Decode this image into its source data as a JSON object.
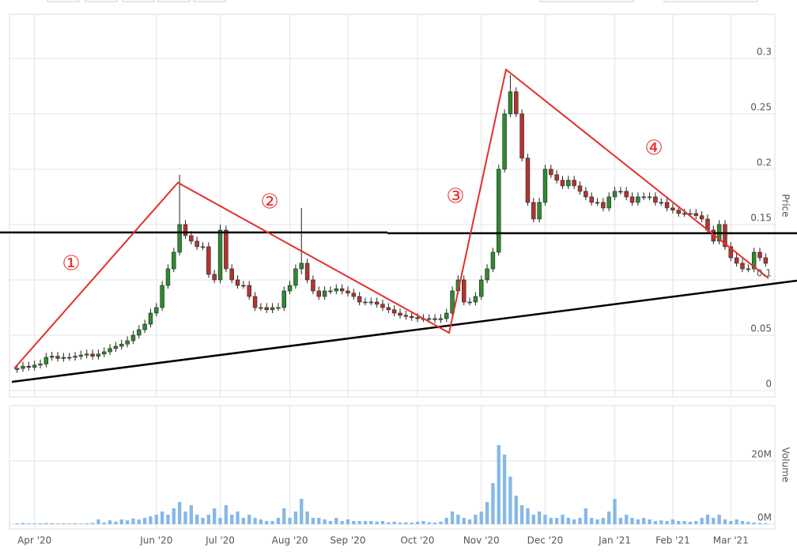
{
  "chart_data": {
    "type": "candlestick",
    "categories": [
      null,
      null,
      null,
      "Apr '20",
      null,
      null,
      null,
      null,
      null,
      null,
      null,
      null,
      null,
      null,
      null,
      null,
      null,
      null,
      null,
      null,
      null,
      null,
      null,
      null,
      "Jun '20",
      null,
      null,
      null,
      null,
      null,
      null,
      null,
      null,
      null,
      null,
      "Jul '20",
      null,
      null,
      null,
      null,
      null,
      null,
      null,
      null,
      null,
      null,
      null,
      "Aug '20",
      null,
      null,
      null,
      null,
      null,
      null,
      null,
      null,
      null,
      "Sep '20",
      null,
      null,
      null,
      null,
      null,
      null,
      null,
      null,
      null,
      null,
      null,
      "Oct '20",
      null,
      null,
      null,
      null,
      null,
      null,
      null,
      null,
      null,
      null,
      "Nov '20",
      null,
      null,
      null,
      null,
      null,
      null,
      null,
      null,
      null,
      null,
      "Dec '20",
      null,
      null,
      null,
      null,
      null,
      null,
      null,
      null,
      null,
      null,
      null,
      "Jan '21",
      null,
      null,
      null,
      null,
      null,
      null,
      null,
      null,
      null,
      "Feb '21",
      null,
      null,
      null,
      null,
      null,
      null,
      null,
      null,
      null,
      "Mar '21",
      null,
      null,
      null,
      null,
      null,
      null
    ],
    "ohlc": [
      [
        0.019,
        0.023,
        0.016,
        0.02
      ],
      [
        0.02,
        0.026,
        0.017,
        0.022
      ],
      [
        0.022,
        0.026,
        0.018,
        0.021
      ],
      [
        0.021,
        0.027,
        0.018,
        0.023
      ],
      [
        0.023,
        0.028,
        0.02,
        0.024
      ],
      [
        0.024,
        0.034,
        0.021,
        0.03
      ],
      [
        0.03,
        0.035,
        0.027,
        0.031
      ],
      [
        0.031,
        0.035,
        0.026,
        0.029
      ],
      [
        0.029,
        0.034,
        0.026,
        0.03
      ],
      [
        0.03,
        0.034,
        0.027,
        0.03
      ],
      [
        0.03,
        0.035,
        0.027,
        0.031
      ],
      [
        0.031,
        0.036,
        0.028,
        0.032
      ],
      [
        0.032,
        0.037,
        0.029,
        0.033
      ],
      [
        0.033,
        0.037,
        0.028,
        0.031
      ],
      [
        0.031,
        0.037,
        0.028,
        0.033
      ],
      [
        0.033,
        0.039,
        0.03,
        0.035
      ],
      [
        0.035,
        0.042,
        0.032,
        0.038
      ],
      [
        0.038,
        0.044,
        0.035,
        0.04
      ],
      [
        0.04,
        0.046,
        0.037,
        0.042
      ],
      [
        0.042,
        0.049,
        0.039,
        0.045
      ],
      [
        0.045,
        0.054,
        0.042,
        0.05
      ],
      [
        0.05,
        0.059,
        0.047,
        0.055
      ],
      [
        0.055,
        0.064,
        0.052,
        0.06
      ],
      [
        0.06,
        0.074,
        0.057,
        0.07
      ],
      [
        0.07,
        0.079,
        0.067,
        0.075
      ],
      [
        0.075,
        0.099,
        0.072,
        0.095
      ],
      [
        0.095,
        0.114,
        0.092,
        0.11
      ],
      [
        0.11,
        0.129,
        0.107,
        0.125
      ],
      [
        0.125,
        0.195,
        0.122,
        0.15
      ],
      [
        0.15,
        0.154,
        0.137,
        0.14
      ],
      [
        0.14,
        0.144,
        0.132,
        0.135
      ],
      [
        0.135,
        0.139,
        0.127,
        0.13
      ],
      [
        0.13,
        0.134,
        0.127,
        0.13
      ],
      [
        0.13,
        0.134,
        0.102,
        0.105
      ],
      [
        0.105,
        0.109,
        0.097,
        0.1
      ],
      [
        0.1,
        0.15,
        0.097,
        0.145
      ],
      [
        0.145,
        0.149,
        0.107,
        0.11
      ],
      [
        0.11,
        0.114,
        0.097,
        0.1
      ],
      [
        0.1,
        0.104,
        0.092,
        0.095
      ],
      [
        0.095,
        0.099,
        0.092,
        0.095
      ],
      [
        0.095,
        0.099,
        0.082,
        0.085
      ],
      [
        0.085,
        0.089,
        0.072,
        0.075
      ],
      [
        0.075,
        0.079,
        0.072,
        0.075
      ],
      [
        0.075,
        0.079,
        0.07,
        0.073
      ],
      [
        0.073,
        0.079,
        0.07,
        0.075
      ],
      [
        0.075,
        0.079,
        0.072,
        0.075
      ],
      [
        0.075,
        0.094,
        0.072,
        0.09
      ],
      [
        0.09,
        0.099,
        0.087,
        0.095
      ],
      [
        0.095,
        0.114,
        0.092,
        0.11
      ],
      [
        0.11,
        0.165,
        0.105,
        0.115
      ],
      [
        0.115,
        0.119,
        0.097,
        0.1
      ],
      [
        0.1,
        0.104,
        0.087,
        0.09
      ],
      [
        0.09,
        0.094,
        0.082,
        0.085
      ],
      [
        0.085,
        0.094,
        0.082,
        0.09
      ],
      [
        0.09,
        0.094,
        0.087,
        0.09
      ],
      [
        0.09,
        0.096,
        0.087,
        0.092
      ],
      [
        0.092,
        0.096,
        0.087,
        0.09
      ],
      [
        0.09,
        0.094,
        0.085,
        0.088
      ],
      [
        0.088,
        0.092,
        0.082,
        0.085
      ],
      [
        0.085,
        0.089,
        0.077,
        0.08
      ],
      [
        0.08,
        0.084,
        0.077,
        0.08
      ],
      [
        0.08,
        0.084,
        0.077,
        0.08
      ],
      [
        0.08,
        0.084,
        0.075,
        0.078
      ],
      [
        0.078,
        0.082,
        0.072,
        0.075
      ],
      [
        0.075,
        0.079,
        0.07,
        0.073
      ],
      [
        0.073,
        0.077,
        0.067,
        0.07
      ],
      [
        0.07,
        0.074,
        0.065,
        0.068
      ],
      [
        0.068,
        0.072,
        0.064,
        0.067
      ],
      [
        0.067,
        0.071,
        0.063,
        0.066
      ],
      [
        0.066,
        0.07,
        0.062,
        0.065
      ],
      [
        0.065,
        0.069,
        0.062,
        0.065
      ],
      [
        0.065,
        0.069,
        0.062,
        0.065
      ],
      [
        0.065,
        0.069,
        0.061,
        0.064
      ],
      [
        0.064,
        0.069,
        0.061,
        0.065
      ],
      [
        0.065,
        0.074,
        0.062,
        0.07
      ],
      [
        0.07,
        0.094,
        0.067,
        0.09
      ],
      [
        0.09,
        0.104,
        0.087,
        0.1
      ],
      [
        0.1,
        0.104,
        0.077,
        0.08
      ],
      [
        0.08,
        0.084,
        0.077,
        0.08
      ],
      [
        0.08,
        0.089,
        0.077,
        0.085
      ],
      [
        0.085,
        0.104,
        0.082,
        0.1
      ],
      [
        0.1,
        0.114,
        0.097,
        0.11
      ],
      [
        0.11,
        0.129,
        0.107,
        0.125
      ],
      [
        0.125,
        0.204,
        0.122,
        0.2
      ],
      [
        0.2,
        0.254,
        0.197,
        0.25
      ],
      [
        0.25,
        0.285,
        0.247,
        0.27
      ],
      [
        0.27,
        0.274,
        0.247,
        0.25
      ],
      [
        0.25,
        0.254,
        0.207,
        0.21
      ],
      [
        0.21,
        0.214,
        0.167,
        0.17
      ],
      [
        0.17,
        0.174,
        0.152,
        0.155
      ],
      [
        0.155,
        0.174,
        0.152,
        0.17
      ],
      [
        0.17,
        0.204,
        0.167,
        0.2
      ],
      [
        0.2,
        0.204,
        0.192,
        0.195
      ],
      [
        0.195,
        0.199,
        0.187,
        0.19
      ],
      [
        0.19,
        0.194,
        0.182,
        0.185
      ],
      [
        0.185,
        0.194,
        0.182,
        0.19
      ],
      [
        0.19,
        0.194,
        0.182,
        0.185
      ],
      [
        0.185,
        0.189,
        0.177,
        0.18
      ],
      [
        0.18,
        0.184,
        0.172,
        0.175
      ],
      [
        0.175,
        0.179,
        0.167,
        0.17
      ],
      [
        0.17,
        0.174,
        0.167,
        0.17
      ],
      [
        0.17,
        0.174,
        0.162,
        0.165
      ],
      [
        0.165,
        0.179,
        0.162,
        0.175
      ],
      [
        0.175,
        0.184,
        0.172,
        0.18
      ],
      [
        0.18,
        0.184,
        0.177,
        0.18
      ],
      [
        0.18,
        0.184,
        0.172,
        0.175
      ],
      [
        0.175,
        0.179,
        0.167,
        0.17
      ],
      [
        0.17,
        0.179,
        0.167,
        0.175
      ],
      [
        0.175,
        0.179,
        0.172,
        0.175
      ],
      [
        0.175,
        0.179,
        0.172,
        0.175
      ],
      [
        0.175,
        0.179,
        0.167,
        0.17
      ],
      [
        0.17,
        0.174,
        0.167,
        0.17
      ],
      [
        0.17,
        0.174,
        0.162,
        0.165
      ],
      [
        0.165,
        0.169,
        0.16,
        0.163
      ],
      [
        0.163,
        0.167,
        0.157,
        0.16
      ],
      [
        0.16,
        0.164,
        0.157,
        0.16
      ],
      [
        0.16,
        0.164,
        0.157,
        0.16
      ],
      [
        0.16,
        0.164,
        0.155,
        0.158
      ],
      [
        0.158,
        0.162,
        0.152,
        0.155
      ],
      [
        0.155,
        0.159,
        0.142,
        0.145
      ],
      [
        0.145,
        0.149,
        0.132,
        0.135
      ],
      [
        0.135,
        0.154,
        0.132,
        0.15
      ],
      [
        0.15,
        0.154,
        0.127,
        0.13
      ],
      [
        0.13,
        0.134,
        0.117,
        0.12
      ],
      [
        0.12,
        0.124,
        0.112,
        0.115
      ],
      [
        0.115,
        0.119,
        0.107,
        0.11
      ],
      [
        0.11,
        0.114,
        0.107,
        0.11
      ],
      [
        0.11,
        0.129,
        0.107,
        0.125
      ],
      [
        0.125,
        0.129,
        0.117,
        0.12
      ],
      [
        0.12,
        0.124,
        0.112,
        0.115
      ]
    ],
    "up_color": "#2f8a2f",
    "down_color": "#b8322e",
    "ylabel": "Price",
    "ylim": [
      0,
      0.34
    ],
    "yticks": [
      0,
      0.05,
      0.1,
      0.15,
      0.2,
      0.25,
      0.3
    ],
    "grid": true,
    "volume": {
      "type": "bar",
      "ylabel": "Volume",
      "color": "#86b8e8",
      "ylim": [
        0,
        37
      ],
      "yticks": [
        {
          "value": 0,
          "label": "0M"
        },
        {
          "value": 20,
          "label": "20M"
        }
      ],
      "values": [
        0.3,
        0.4,
        0.3,
        0.2,
        0.3,
        0.4,
        0.3,
        0.2,
        0.3,
        0.2,
        0.3,
        0.2,
        0.3,
        0.4,
        1.5,
        0.5,
        1.2,
        0.8,
        1.5,
        1.2,
        1.8,
        1.5,
        2,
        2.5,
        3,
        4,
        3,
        5,
        7,
        4,
        6,
        3,
        2,
        3,
        5,
        2,
        6,
        3,
        4,
        2,
        3,
        2,
        1.5,
        1,
        1,
        2,
        5,
        2,
        4,
        8,
        4,
        2,
        2,
        1.5,
        1,
        2,
        1,
        1.5,
        1,
        1,
        1,
        1,
        0.8,
        1,
        0.6,
        0.8,
        0.5,
        0.6,
        0.5,
        0.8,
        1,
        0.6,
        0.5,
        0.8,
        2,
        4,
        3,
        2,
        1.5,
        3,
        4,
        7,
        13,
        25,
        22,
        15,
        9,
        6,
        5,
        3,
        4,
        3,
        2,
        2,
        3,
        2,
        1.5,
        2,
        5,
        2,
        1.5,
        2,
        4,
        8,
        2,
        3,
        2,
        1.5,
        2,
        1.5,
        1,
        1.2,
        1,
        1.5,
        1,
        1,
        0.8,
        1,
        2,
        3,
        2,
        3,
        1.5,
        1,
        1.5,
        1,
        0.8,
        0.5,
        0.4,
        0.3
      ]
    },
    "annotations": [
      "①",
      "②",
      "③",
      "④"
    ]
  }
}
